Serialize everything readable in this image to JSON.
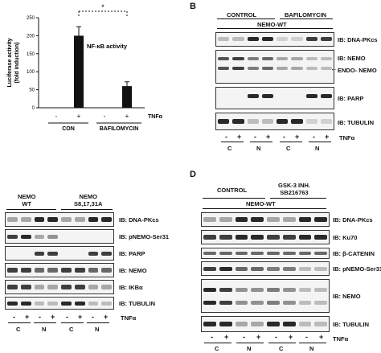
{
  "panels": {
    "a": {
      "chart_data": {
        "type": "bar",
        "categories": [
          "-",
          "+",
          "-",
          "+"
        ],
        "values": [
          0,
          200,
          0,
          60
        ],
        "errors": [
          0,
          25,
          0,
          12
        ],
        "ylabel": "Luciferase activity\n(fold induction)",
        "ylim": [
          0,
          250
        ],
        "yticks": [
          "0",
          "50",
          "100",
          "150",
          "200",
          "250"
        ],
        "annotation": "NF-κB activity",
        "significance": "*",
        "treatment_label": "TNFα",
        "groups": [
          "CON",
          "BAFILOMYCIN"
        ]
      }
    },
    "b": {
      "letter": "B",
      "groups": [
        "CONTROL",
        "BAFILOMYCIN"
      ],
      "subheader": "NEMO-WT",
      "blots": [
        "IB: DNA-PKcs",
        "IB: NEMO",
        "IB: PARP",
        "IB: TUBULIN"
      ],
      "arrow_label": "ENDO- NEMO",
      "signs": [
        "-",
        "+",
        "-",
        "+",
        "-",
        "+",
        "-",
        "+"
      ],
      "fractions": [
        "C",
        "N",
        "C",
        "N"
      ],
      "treatment_label": "TNFα"
    },
    "c": {
      "groups": [
        "NEMO\nWT",
        "NEMO\nS8,17,31A"
      ],
      "blots": [
        "IB: DNA-PKcs",
        "IB: pNEMO-Ser31",
        "IB: PARP",
        "IB: NEMO",
        "IB: IKBα",
        "IB: TUBULIN"
      ],
      "signs": [
        "-",
        "+",
        "-",
        "+",
        "-",
        "+",
        "-",
        "+"
      ],
      "fractions": [
        "C",
        "N",
        "C",
        "N"
      ],
      "treatment_label": "TNFα"
    },
    "d": {
      "letter": "D",
      "groups": [
        "CONTROL",
        "GSK-3 INH.\nSB216763"
      ],
      "subheader": "NEMO-WT",
      "blots": [
        "IB: DNA-PKcs",
        "IB: Ku70",
        "IB: β-CATENIN",
        "IB: pNEMO-Ser31",
        "IB: NEMO",
        "IB: TUBULIN"
      ],
      "signs": [
        "-",
        "+",
        "-",
        "+",
        "-",
        "+",
        "-",
        "+"
      ],
      "fractions": [
        "C",
        "N",
        "C",
        "N"
      ],
      "treatment_label": "TNFα"
    }
  }
}
